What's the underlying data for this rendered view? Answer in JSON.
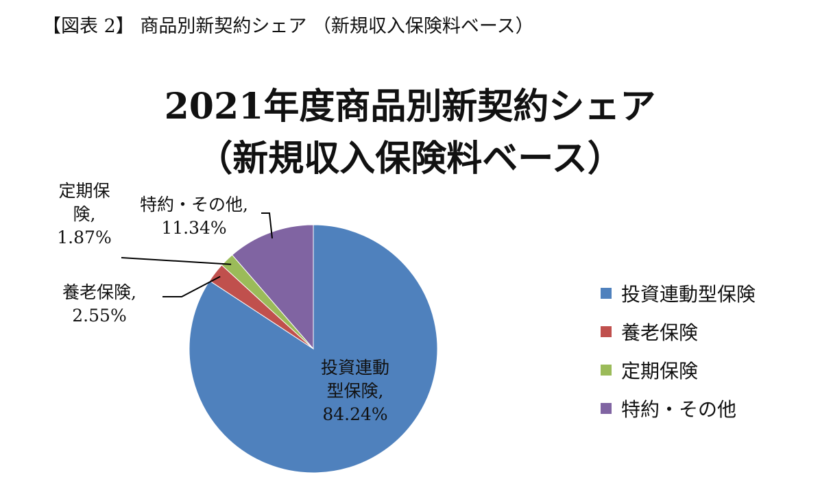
{
  "caption": "【図表 2】 商品別新契約シェア （新規収入保険料ベース）",
  "chart_data": {
    "type": "pie",
    "title_line1": "2021年度商品別新契約シェア",
    "title_line2": "（新規収入保険料ベース）",
    "categories": [
      "投資連動型保険",
      "養老保険",
      "定期保険",
      "特約・その他"
    ],
    "values": [
      84.24,
      2.55,
      1.87,
      11.34
    ],
    "unit": "%",
    "colors": [
      "#4F81BD",
      "#C0504D",
      "#9BBB59",
      "#8064A2"
    ],
    "legend_position": "right",
    "data_labels": [
      {
        "lines": [
          "投資連動",
          "型保険,",
          "84.24%"
        ]
      },
      {
        "lines": [
          "養老保険,",
          "2.55%"
        ]
      },
      {
        "lines": [
          "定期保",
          "険,",
          "1.87%"
        ]
      },
      {
        "lines": [
          "特約・その他,",
          "11.34%"
        ]
      }
    ]
  }
}
